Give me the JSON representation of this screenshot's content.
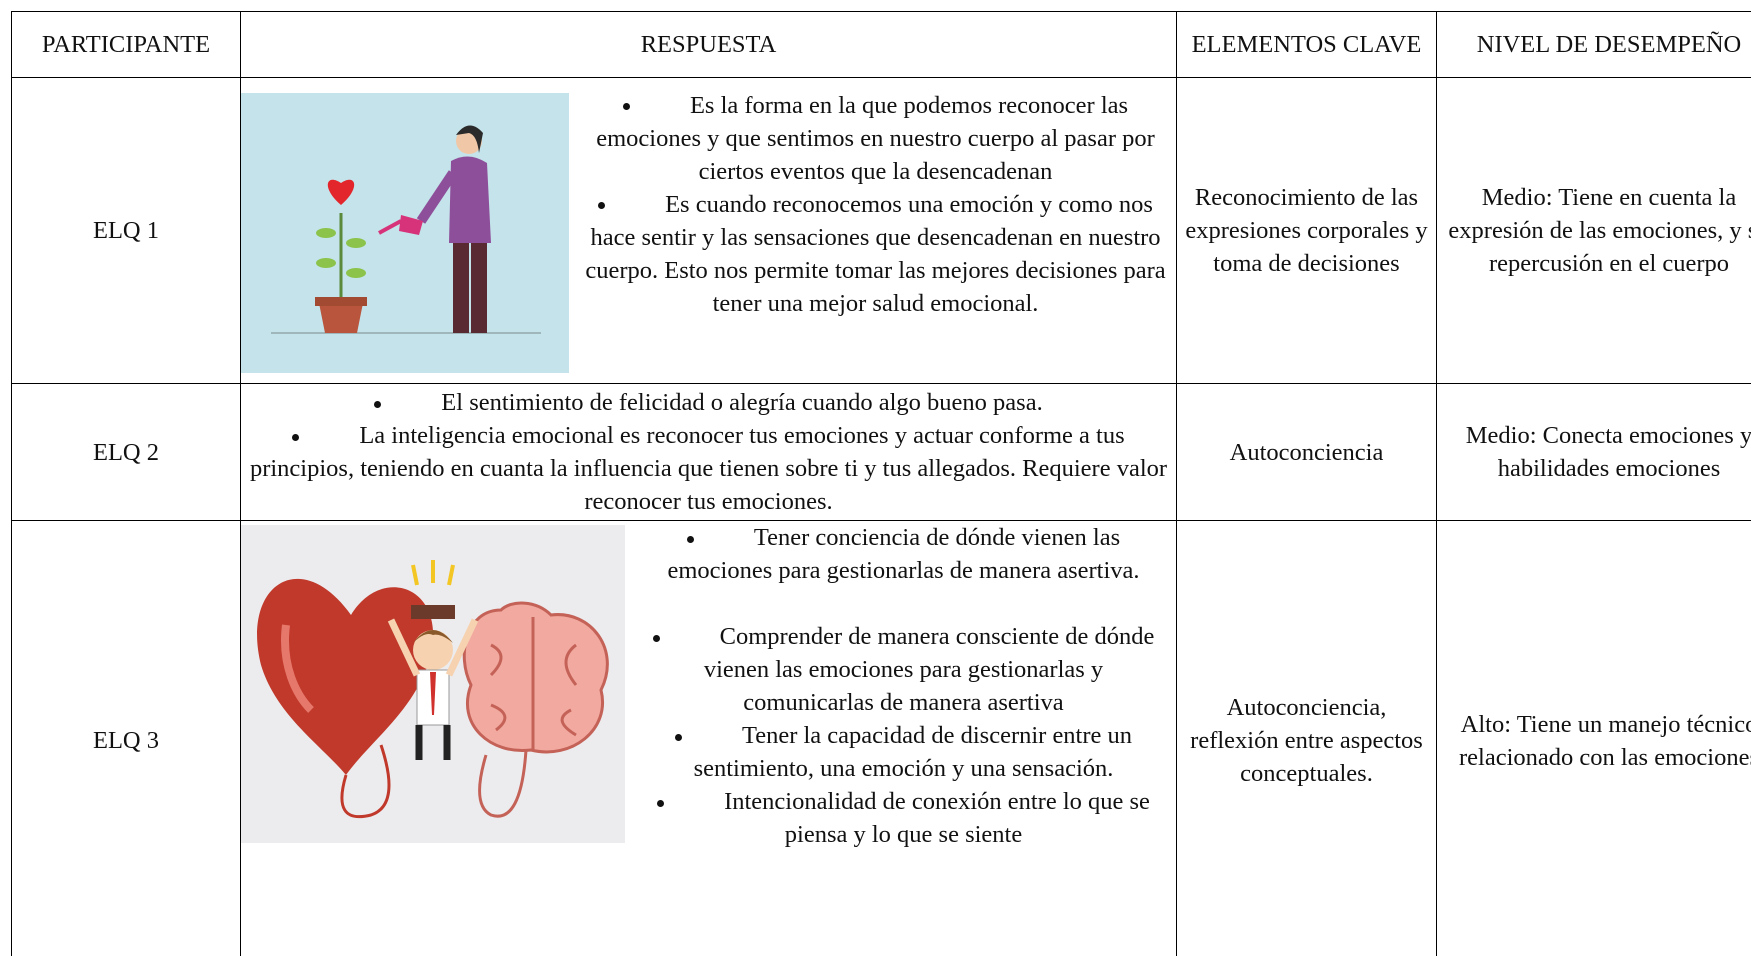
{
  "table": {
    "headers": [
      "PARTICIPANTE",
      "RESPUESTA",
      "ELEMENTOS CLAVE",
      "NIVEL DE DESEMPEÑO"
    ],
    "rows": [
      {
        "participant": "ELQ 1",
        "response": [
          "Es la forma en la que podemos reconocer las emociones y que sentimos en nuestro cuerpo al pasar por ciertos eventos que la desencadenan",
          "Es cuando reconocemos una emoción y como nos hace sentir y las sensaciones que desencadenan en nuestro cuerpo. Esto nos permite tomar las mejores decisiones para tener una mejor salud emocional."
        ],
        "key_elements": "Reconocimiento de las expresiones corporales y toma de decisiones",
        "performance": "Medio: Tiene en cuenta la expresión de las emociones, y su repercusión en el cuerpo"
      },
      {
        "participant": "ELQ 2",
        "response": [
          "El sentimiento de felicidad o alegría cuando algo bueno pasa.",
          "La inteligencia emocional es reconocer tus emociones y actuar conforme a tus principios, teniendo en cuanta la influencia que tienen sobre ti y tus allegados. Requiere valor reconocer tus emociones."
        ],
        "key_elements": "Autoconciencia",
        "performance": "Medio: Conecta emociones y habilidades emociones"
      },
      {
        "participant": "ELQ 3",
        "response": [
          "Tener conciencia de dónde vienen las emociones para gestionarlas de manera asertiva.",
          "Comprender de manera consciente de dónde vienen las emociones para gestionarlas y comunicarlas de manera asertiva",
          "Tener la capacidad de discernir entre un sentimiento, una emoción y una sensación.",
          "Intencionalidad de conexión entre lo que se piensa y lo que se siente"
        ],
        "key_elements": "Autoconciencia, reflexión entre aspectos conceptuales.",
        "performance": "Alto: Tiene un manejo técnico relacionado con las emociones"
      }
    ]
  }
}
